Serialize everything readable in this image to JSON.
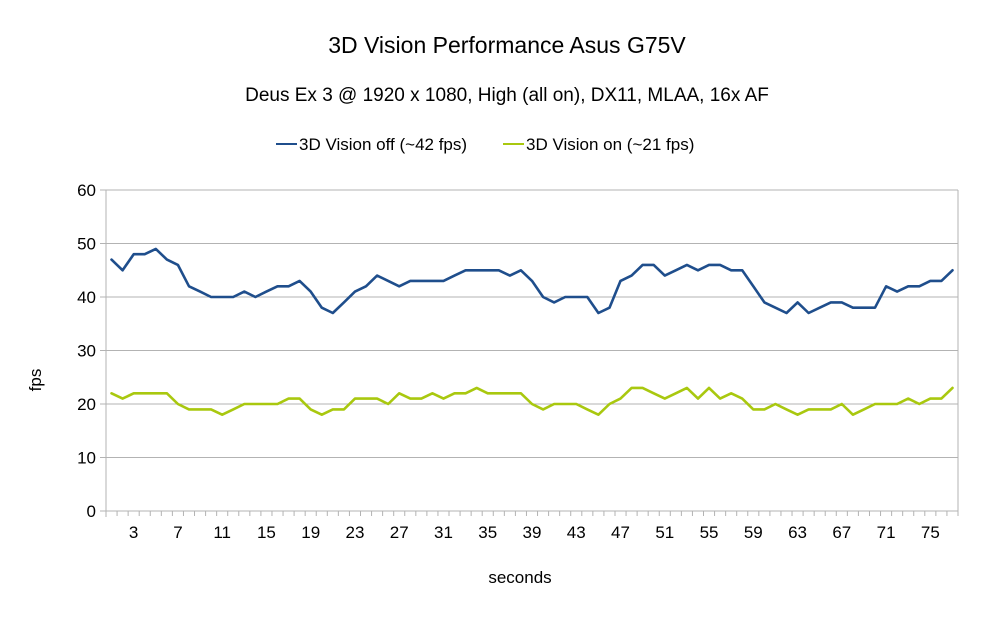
{
  "chart_data": {
    "type": "line",
    "title": "3D Vision Performance Asus G75V",
    "subtitle": "Deus Ex 3 @ 1920 x 1080, High (all on), DX11, MLAA, 16x AF",
    "xlabel": "seconds",
    "ylabel": "fps",
    "ylim": [
      0,
      60
    ],
    "yticks": [
      0,
      10,
      20,
      30,
      40,
      50,
      60
    ],
    "xlim": [
      1,
      77
    ],
    "xtick_labels": [
      "3",
      "7",
      "11",
      "15",
      "19",
      "23",
      "27",
      "31",
      "35",
      "39",
      "43",
      "47",
      "51",
      "55",
      "59",
      "63",
      "67",
      "71",
      "75"
    ],
    "grid": "horizontal",
    "legend_position": "top",
    "series": [
      {
        "name": "3D Vision off (~42 fps)",
        "color": "#1f4e8c",
        "values": [
          47,
          45,
          48,
          48,
          49,
          47,
          46,
          42,
          41,
          40,
          40,
          40,
          41,
          40,
          41,
          42,
          42,
          43,
          41,
          38,
          37,
          39,
          41,
          42,
          44,
          43,
          42,
          43,
          43,
          43,
          43,
          44,
          45,
          45,
          45,
          45,
          44,
          45,
          43,
          40,
          39,
          40,
          40,
          40,
          37,
          38,
          43,
          44,
          46,
          46,
          44,
          45,
          46,
          45,
          46,
          46,
          45,
          45,
          42,
          39,
          38,
          37,
          39,
          37,
          38,
          39,
          39,
          38,
          38,
          38,
          42,
          41,
          42,
          42,
          43,
          43,
          45
        ]
      },
      {
        "name": "3D Vision on (~21 fps)",
        "color": "#a9c80f",
        "values": [
          22,
          21,
          22,
          22,
          22,
          22,
          20,
          19,
          19,
          19,
          18,
          19,
          20,
          20,
          20,
          20,
          21,
          21,
          19,
          18,
          19,
          19,
          21,
          21,
          21,
          20,
          22,
          21,
          21,
          22,
          21,
          22,
          22,
          23,
          22,
          22,
          22,
          22,
          20,
          19,
          20,
          20,
          20,
          19,
          18,
          20,
          21,
          23,
          23,
          22,
          21,
          22,
          23,
          21,
          23,
          21,
          22,
          21,
          19,
          19,
          20,
          19,
          18,
          19,
          19,
          19,
          20,
          18,
          19,
          20,
          20,
          20,
          21,
          20,
          21,
          21,
          23
        ]
      }
    ]
  }
}
